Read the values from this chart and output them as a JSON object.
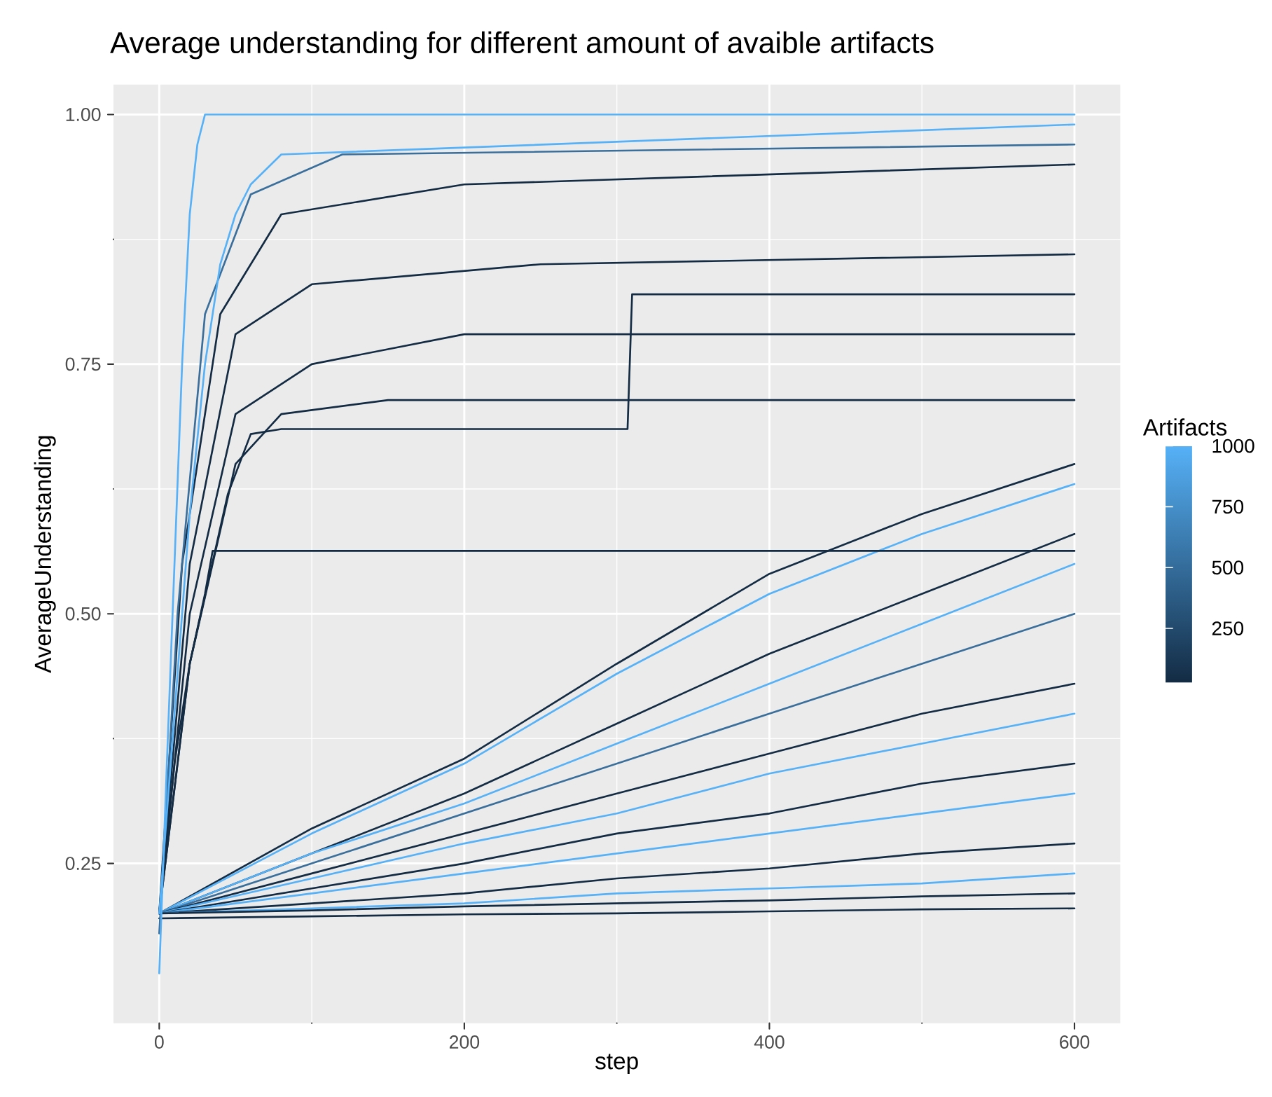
{
  "chart_data": {
    "type": "line",
    "title": "Average understanding for different amount of avaible artifacts",
    "xlabel": "step",
    "ylabel": "AverageUnderstanding",
    "clabel": "Artifacts",
    "clim": [
      25,
      1000
    ],
    "cticks": [
      250,
      500,
      750,
      1000
    ],
    "xlim": [
      -30,
      630
    ],
    "ylim": [
      0.09,
      1.03
    ],
    "xticks": [
      0,
      200,
      400,
      600
    ],
    "yticks": [
      {
        "value": 0.25,
        "label": "0.25"
      },
      {
        "value": 0.5,
        "label": "0.50"
      },
      {
        "value": 0.75,
        "label": "0.75"
      },
      {
        "value": 1.0,
        "label": "1.00"
      }
    ],
    "grid": true,
    "line_style": "solid",
    "marker": "none",
    "series": [
      {
        "color": "#132b43",
        "x": [
          0,
          100,
          200,
          300,
          400,
          500,
          600
        ],
        "values": [
          0.2,
          0.285,
          0.355,
          0.45,
          0.54,
          0.6,
          0.65
        ]
      },
      {
        "color": "#56b1f7",
        "x": [
          0,
          100,
          200,
          300,
          400,
          500,
          600
        ],
        "values": [
          0.2,
          0.28,
          0.35,
          0.44,
          0.52,
          0.58,
          0.63
        ]
      },
      {
        "color": "#132b43",
        "x": [
          0,
          100,
          200,
          300,
          400,
          500,
          600
        ],
        "values": [
          0.2,
          0.26,
          0.32,
          0.39,
          0.46,
          0.52,
          0.58
        ]
      },
      {
        "color": "#56b1f7",
        "x": [
          0,
          100,
          200,
          300,
          400,
          500,
          600
        ],
        "values": [
          0.2,
          0.26,
          0.31,
          0.37,
          0.43,
          0.49,
          0.55
        ]
      },
      {
        "color": "#3a6f9c",
        "x": [
          0,
          100,
          200,
          300,
          400,
          500,
          600
        ],
        "values": [
          0.2,
          0.25,
          0.3,
          0.35,
          0.4,
          0.45,
          0.5
        ]
      },
      {
        "color": "#132b43",
        "x": [
          0,
          100,
          200,
          300,
          400,
          500,
          600
        ],
        "values": [
          0.2,
          0.24,
          0.28,
          0.32,
          0.36,
          0.4,
          0.43
        ]
      },
      {
        "color": "#56b1f7",
        "x": [
          0,
          100,
          200,
          300,
          400,
          500,
          600
        ],
        "values": [
          0.2,
          0.235,
          0.27,
          0.3,
          0.34,
          0.37,
          0.4
        ]
      },
      {
        "color": "#132b43",
        "x": [
          0,
          100,
          200,
          300,
          400,
          500,
          600
        ],
        "values": [
          0.2,
          0.225,
          0.25,
          0.28,
          0.3,
          0.33,
          0.35
        ]
      },
      {
        "color": "#56b1f7",
        "x": [
          0,
          100,
          200,
          300,
          400,
          500,
          600
        ],
        "values": [
          0.2,
          0.22,
          0.24,
          0.26,
          0.28,
          0.3,
          0.32
        ]
      },
      {
        "color": "#132b43",
        "x": [
          0,
          100,
          200,
          300,
          400,
          500,
          600
        ],
        "values": [
          0.2,
          0.21,
          0.22,
          0.235,
          0.245,
          0.26,
          0.27
        ]
      },
      {
        "color": "#56b1f7",
        "x": [
          0,
          100,
          200,
          300,
          400,
          500,
          600
        ],
        "values": [
          0.2,
          0.205,
          0.21,
          0.22,
          0.225,
          0.23,
          0.24
        ]
      },
      {
        "color": "#132b43",
        "x": [
          0,
          100,
          200,
          300,
          400,
          500,
          600
        ],
        "values": [
          0.2,
          0.203,
          0.207,
          0.21,
          0.213,
          0.217,
          0.22
        ]
      },
      {
        "color": "#132b43",
        "x": [
          0,
          100,
          200,
          300,
          400,
          500,
          600
        ],
        "values": [
          0.195,
          0.197,
          0.199,
          0.2,
          0.202,
          0.204,
          0.205
        ]
      },
      {
        "color": "#132b43",
        "x": [
          0,
          10,
          20,
          30,
          35,
          600
        ],
        "values": [
          0.2,
          0.35,
          0.45,
          0.52,
          0.563,
          0.563
        ]
      },
      {
        "color": "#132b43",
        "x": [
          0,
          20,
          45,
          60,
          80,
          307,
          310,
          600
        ],
        "values": [
          0.2,
          0.45,
          0.62,
          0.68,
          0.685,
          0.685,
          0.82,
          0.82
        ]
      },
      {
        "color": "#132b43",
        "x": [
          0,
          20,
          50,
          80,
          150,
          600
        ],
        "values": [
          0.2,
          0.45,
          0.65,
          0.7,
          0.714,
          0.714
        ]
      },
      {
        "color": "#132b43",
        "x": [
          0,
          20,
          50,
          100,
          200,
          600
        ],
        "values": [
          0.2,
          0.5,
          0.7,
          0.75,
          0.78,
          0.78
        ]
      },
      {
        "color": "#132b43",
        "x": [
          0,
          20,
          50,
          100,
          250,
          600
        ],
        "values": [
          0.2,
          0.55,
          0.78,
          0.83,
          0.85,
          0.86
        ]
      },
      {
        "color": "#132b43",
        "x": [
          0,
          15,
          40,
          80,
          200,
          600
        ],
        "values": [
          0.2,
          0.55,
          0.8,
          0.9,
          0.93,
          0.95
        ]
      },
      {
        "color": "#3a6f9c",
        "x": [
          0,
          12,
          30,
          60,
          120,
          600
        ],
        "values": [
          0.18,
          0.5,
          0.8,
          0.92,
          0.96,
          0.97
        ]
      },
      {
        "color": "#56b1f7",
        "x": [
          0,
          10,
          20,
          30,
          40,
          50,
          60,
          80,
          600
        ],
        "values": [
          0.2,
          0.4,
          0.6,
          0.75,
          0.85,
          0.9,
          0.93,
          0.96,
          0.99
        ]
      },
      {
        "color": "#56b1f7",
        "x": [
          0,
          5,
          10,
          15,
          20,
          25,
          30,
          600
        ],
        "values": [
          0.14,
          0.35,
          0.55,
          0.75,
          0.9,
          0.97,
          1.0,
          1.0
        ]
      }
    ]
  }
}
